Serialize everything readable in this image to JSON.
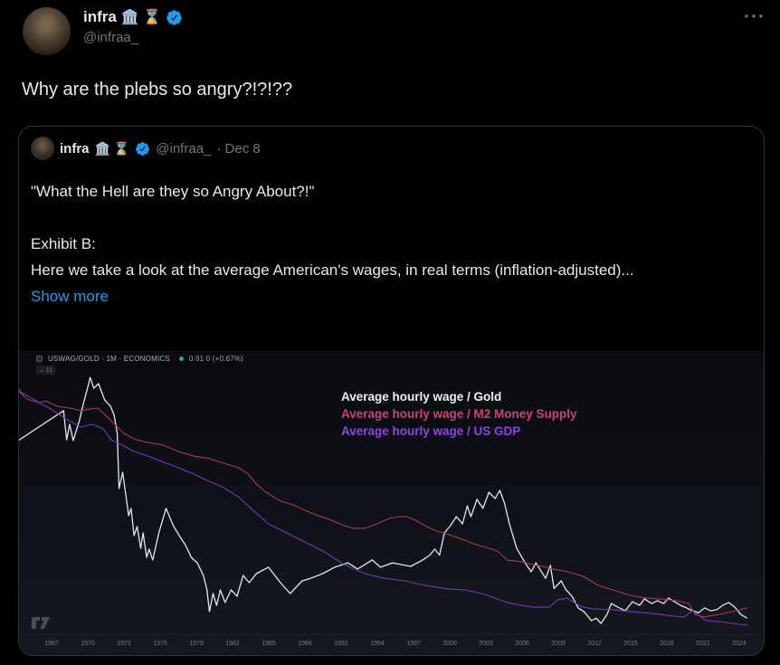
{
  "tweet": {
    "author": {
      "name": "infra",
      "emojis": "🏛️ ⌛",
      "handle": "@infraa_"
    },
    "text": "Why are the plebs so angry?!?!??"
  },
  "icons": {
    "more_icon": "···",
    "verified_badge": "blue-check-seal",
    "price_dot": "teal-dot"
  },
  "quote": {
    "author": {
      "name": "infra",
      "emojis": "🏛️ ⌛",
      "handle": "@infraa_",
      "date": "· Dec 8"
    },
    "lines": [
      "\"What the Hell are they so Angry About?!\"",
      "",
      "Exhibit B:",
      "Here we take a look at the average American's wages, in real terms (inflation-adjusted)..."
    ],
    "show_more": "Show more"
  },
  "chart": {
    "symbol_line": "USWAG/GOLD · 1M · ECONOMICS",
    "price_line": "0.91 0 (+0.67%)",
    "sub_badge": "⌄ 11"
  },
  "colors": {
    "background": "#000000",
    "text_primary": "#e7e9ea",
    "text_secondary": "#71767b",
    "accent_blue": "#1d9bf0",
    "card_border": "#2f3336",
    "chart_bg_top": "#0a0b0f",
    "chart_bg_bottom": "#161820"
  },
  "chart_data": {
    "type": "line",
    "title": "",
    "xlabel": "",
    "ylabel": "",
    "grid": false,
    "legend_position": "top-center",
    "x_axis": {
      "range": [
        1964,
        2026
      ],
      "ticks": [
        "1967",
        "1970",
        "1973",
        "1976",
        "1979",
        "1982",
        "1985",
        "1988",
        "1991",
        "1994",
        "1997",
        "2000",
        "2003",
        "2006",
        "2009",
        "2012",
        "2015",
        "2018",
        "2021",
        "2024"
      ]
    },
    "y_axis": {
      "visible": false,
      "note": "no y scale shown; point values below are normalized 0-100 of plot height"
    },
    "series": [
      {
        "name": "Average hourly wage / Gold",
        "color": "#e4e7ee",
        "legend_color": "#eceff4",
        "stroke_width": 1.3,
        "points": [
          [
            1964.0,
            73.7
          ],
          [
            1968.0,
            86.0
          ],
          [
            1968.25,
            74.7
          ],
          [
            1968.5,
            80.7
          ],
          [
            1968.8,
            74.4
          ],
          [
            1969.3,
            82.0
          ],
          [
            1969.6,
            88.0
          ],
          [
            1970.0,
            95.0
          ],
          [
            1970.2,
            98.9
          ],
          [
            1970.5,
            94.7
          ],
          [
            1970.9,
            96.5
          ],
          [
            1971.4,
            90.2
          ],
          [
            1971.9,
            87.7
          ],
          [
            1972.2,
            84.2
          ],
          [
            1972.45,
            77.2
          ],
          [
            1972.6,
            55.8
          ],
          [
            1972.9,
            62.1
          ],
          [
            1973.2,
            52.0
          ],
          [
            1973.4,
            45.3
          ],
          [
            1973.6,
            48.1
          ],
          [
            1973.85,
            37.5
          ],
          [
            1974.1,
            41.1
          ],
          [
            1974.4,
            32.6
          ],
          [
            1974.6,
            38.6
          ],
          [
            1974.9,
            29.1
          ],
          [
            1975.1,
            32.3
          ],
          [
            1975.4,
            28.1
          ],
          [
            1975.9,
            38.6
          ],
          [
            1976.5,
            48.1
          ],
          [
            1977.1,
            41.4
          ],
          [
            1977.6,
            37.5
          ],
          [
            1978.1,
            34.0
          ],
          [
            1978.6,
            29.1
          ],
          [
            1979.1,
            27.0
          ],
          [
            1979.6,
            22.1
          ],
          [
            1979.9,
            16.5
          ],
          [
            1980.1,
            8.1
          ],
          [
            1980.4,
            15.1
          ],
          [
            1980.7,
            10.5
          ],
          [
            1981.0,
            16.5
          ],
          [
            1981.4,
            11.6
          ],
          [
            1981.9,
            16.5
          ],
          [
            1982.4,
            14.0
          ],
          [
            1982.9,
            22.1
          ],
          [
            1983.4,
            19.3
          ],
          [
            1984.0,
            22.8
          ],
          [
            1985.0,
            25.3
          ],
          [
            1986.0,
            19.3
          ],
          [
            1986.8,
            15.1
          ],
          [
            1987.8,
            20.0
          ],
          [
            1988.5,
            21.0
          ],
          [
            1989.5,
            22.8
          ],
          [
            1990.5,
            25.3
          ],
          [
            1991.6,
            27.0
          ],
          [
            1992.4,
            24.6
          ],
          [
            1993.6,
            28.1
          ],
          [
            1994.3,
            25.3
          ],
          [
            1995.3,
            27.0
          ],
          [
            1996.8,
            25.6
          ],
          [
            1997.8,
            28.1
          ],
          [
            1998.4,
            30.0
          ],
          [
            1998.8,
            32.3
          ],
          [
            1999.2,
            30.0
          ],
          [
            1999.6,
            38.6
          ],
          [
            2000.1,
            41.4
          ],
          [
            2000.6,
            44.9
          ],
          [
            2001.1,
            42.1
          ],
          [
            2001.5,
            49.1
          ],
          [
            2001.8,
            44.9
          ],
          [
            2002.3,
            51.6
          ],
          [
            2002.8,
            48.1
          ],
          [
            2003.3,
            54.4
          ],
          [
            2003.8,
            51.9
          ],
          [
            2004.2,
            55.1
          ],
          [
            2004.6,
            50.0
          ],
          [
            2005.0,
            42.0
          ],
          [
            2005.6,
            32.6
          ],
          [
            2006.3,
            27.0
          ],
          [
            2006.8,
            23.5
          ],
          [
            2007.2,
            27.0
          ],
          [
            2007.6,
            24.0
          ],
          [
            2008.0,
            21.0
          ],
          [
            2008.4,
            26.0
          ],
          [
            2008.7,
            17.0
          ],
          [
            2009.3,
            20.0
          ],
          [
            2009.7,
            16.5
          ],
          [
            2010.2,
            14.0
          ],
          [
            2010.7,
            9.5
          ],
          [
            2011.2,
            8.0
          ],
          [
            2011.8,
            4.6
          ],
          [
            2012.2,
            5.5
          ],
          [
            2012.6,
            3.5
          ],
          [
            2013.1,
            7.0
          ],
          [
            2013.45,
            11.2
          ],
          [
            2014.0,
            9.8
          ],
          [
            2014.6,
            8.4
          ],
          [
            2015.2,
            11.9
          ],
          [
            2015.8,
            10.5
          ],
          [
            2016.2,
            13.0
          ],
          [
            2016.8,
            11.2
          ],
          [
            2017.3,
            12.3
          ],
          [
            2017.8,
            11.2
          ],
          [
            2018.2,
            13.3
          ],
          [
            2018.7,
            11.9
          ],
          [
            2019.2,
            10.5
          ],
          [
            2019.7,
            9.5
          ],
          [
            2020.2,
            8.4
          ],
          [
            2020.7,
            7.7
          ],
          [
            2021.2,
            9.5
          ],
          [
            2021.7,
            8.4
          ],
          [
            2022.2,
            8.8
          ],
          [
            2022.7,
            10.5
          ],
          [
            2023.2,
            11.6
          ],
          [
            2023.7,
            9.8
          ],
          [
            2024.2,
            7.0
          ],
          [
            2024.7,
            5.6
          ]
        ]
      },
      {
        "name": "Average hourly wage / M2 Money Supply",
        "color": "#a83b55",
        "legend_color": "#c9466b",
        "stroke_width": 1.1,
        "points": [
          [
            1964.0,
            94.7
          ],
          [
            1965.0,
            90.5
          ],
          [
            1966.0,
            89.1
          ],
          [
            1966.5,
            89.8
          ],
          [
            1967.5,
            87.7
          ],
          [
            1968.5,
            87.0
          ],
          [
            1969.5,
            86.0
          ],
          [
            1970.2,
            86.7
          ],
          [
            1970.8,
            87.0
          ],
          [
            1971.5,
            84.2
          ],
          [
            1972.0,
            81.8
          ],
          [
            1973.0,
            77.2
          ],
          [
            1974.0,
            74.7
          ],
          [
            1975.0,
            73.7
          ],
          [
            1976.3,
            72.6
          ],
          [
            1977.5,
            70.2
          ],
          [
            1978.8,
            68.4
          ],
          [
            1980.1,
            67.4
          ],
          [
            1981.3,
            65.6
          ],
          [
            1982.5,
            63.9
          ],
          [
            1983.3,
            61.5
          ],
          [
            1984.0,
            57.5
          ],
          [
            1984.8,
            54.4
          ],
          [
            1986.0,
            50.9
          ],
          [
            1987.0,
            49.5
          ],
          [
            1988.0,
            47.4
          ],
          [
            1989.0,
            45.5
          ],
          [
            1990.0,
            43.9
          ],
          [
            1991.3,
            41.4
          ],
          [
            1992.0,
            40.4
          ],
          [
            1993.0,
            40.4
          ],
          [
            1994.0,
            42.1
          ],
          [
            1995.0,
            44.2
          ],
          [
            1995.8,
            44.9
          ],
          [
            1996.5,
            44.9
          ],
          [
            1997.2,
            43.5
          ],
          [
            1998.0,
            41.4
          ],
          [
            1998.8,
            39.6
          ],
          [
            2000.0,
            37.9
          ],
          [
            2001.3,
            35.8
          ],
          [
            2002.0,
            34.4
          ],
          [
            2003.0,
            33.0
          ],
          [
            2004.0,
            31.6
          ],
          [
            2004.8,
            28.1
          ],
          [
            2006.0,
            27.4
          ],
          [
            2007.0,
            26.3
          ],
          [
            2008.0,
            25.3
          ],
          [
            2008.6,
            24.6
          ],
          [
            2009.9,
            23.5
          ],
          [
            2011.1,
            21.8
          ],
          [
            2012.4,
            18.2
          ],
          [
            2013.6,
            16.5
          ],
          [
            2014.5,
            15.1
          ],
          [
            2015.4,
            14.0
          ],
          [
            2016.4,
            13.3
          ],
          [
            2017.4,
            13.0
          ],
          [
            2018.9,
            12.3
          ],
          [
            2019.9,
            11.2
          ],
          [
            2020.4,
            7.0
          ],
          [
            2021.1,
            6.0
          ],
          [
            2022.0,
            6.7
          ],
          [
            2022.4,
            7.0
          ],
          [
            2023.7,
            8.4
          ],
          [
            2024.7,
            9.5
          ]
        ]
      },
      {
        "name": "Average hourly wage / US GDP",
        "color": "#6f3cb5",
        "legend_color": "#8a46dd",
        "stroke_width": 1.1,
        "points": [
          [
            1964.0,
            96.5
          ],
          [
            1964.5,
            93.0
          ],
          [
            1965.5,
            90.5
          ],
          [
            1966.2,
            88.4
          ],
          [
            1966.8,
            87.0
          ],
          [
            1967.5,
            84.9
          ],
          [
            1968.3,
            82.5
          ],
          [
            1969.0,
            80.7
          ],
          [
            1969.5,
            79.6
          ],
          [
            1970.3,
            80.7
          ],
          [
            1970.8,
            80.0
          ],
          [
            1971.3,
            78.9
          ],
          [
            1972.0,
            74.4
          ],
          [
            1972.5,
            73.7
          ],
          [
            1973.8,
            70.2
          ],
          [
            1975.0,
            68.4
          ],
          [
            1976.3,
            66.0
          ],
          [
            1977.5,
            63.9
          ],
          [
            1978.8,
            61.4
          ],
          [
            1980.1,
            58.6
          ],
          [
            1981.3,
            56.1
          ],
          [
            1982.5,
            52.6
          ],
          [
            1983.8,
            47.0
          ],
          [
            1985.0,
            42.1
          ],
          [
            1986.5,
            38.6
          ],
          [
            1988.0,
            35.1
          ],
          [
            1989.5,
            31.6
          ],
          [
            1991.3,
            26.3
          ],
          [
            1993.0,
            22.8
          ],
          [
            1994.5,
            21.1
          ],
          [
            1996.3,
            20.0
          ],
          [
            1998.0,
            18.2
          ],
          [
            2000.0,
            16.8
          ],
          [
            2001.3,
            16.5
          ],
          [
            2003.0,
            14.7
          ],
          [
            2004.8,
            11.6
          ],
          [
            2006.0,
            10.5
          ],
          [
            2007.0,
            9.8
          ],
          [
            2008.3,
            9.8
          ],
          [
            2009.0,
            12.6
          ],
          [
            2009.8,
            13.3
          ],
          [
            2010.5,
            11.2
          ],
          [
            2011.1,
            9.8
          ],
          [
            2012.0,
            9.1
          ],
          [
            2013.6,
            8.8
          ],
          [
            2015.0,
            8.1
          ],
          [
            2016.1,
            7.7
          ],
          [
            2017.5,
            7.0
          ],
          [
            2018.6,
            6.3
          ],
          [
            2019.5,
            6.0
          ],
          [
            2020.2,
            8.4
          ],
          [
            2020.8,
            6.3
          ],
          [
            2021.3,
            4.6
          ],
          [
            2022.4,
            4.2
          ],
          [
            2023.5,
            3.5
          ],
          [
            2024.7,
            2.8
          ]
        ]
      }
    ]
  }
}
